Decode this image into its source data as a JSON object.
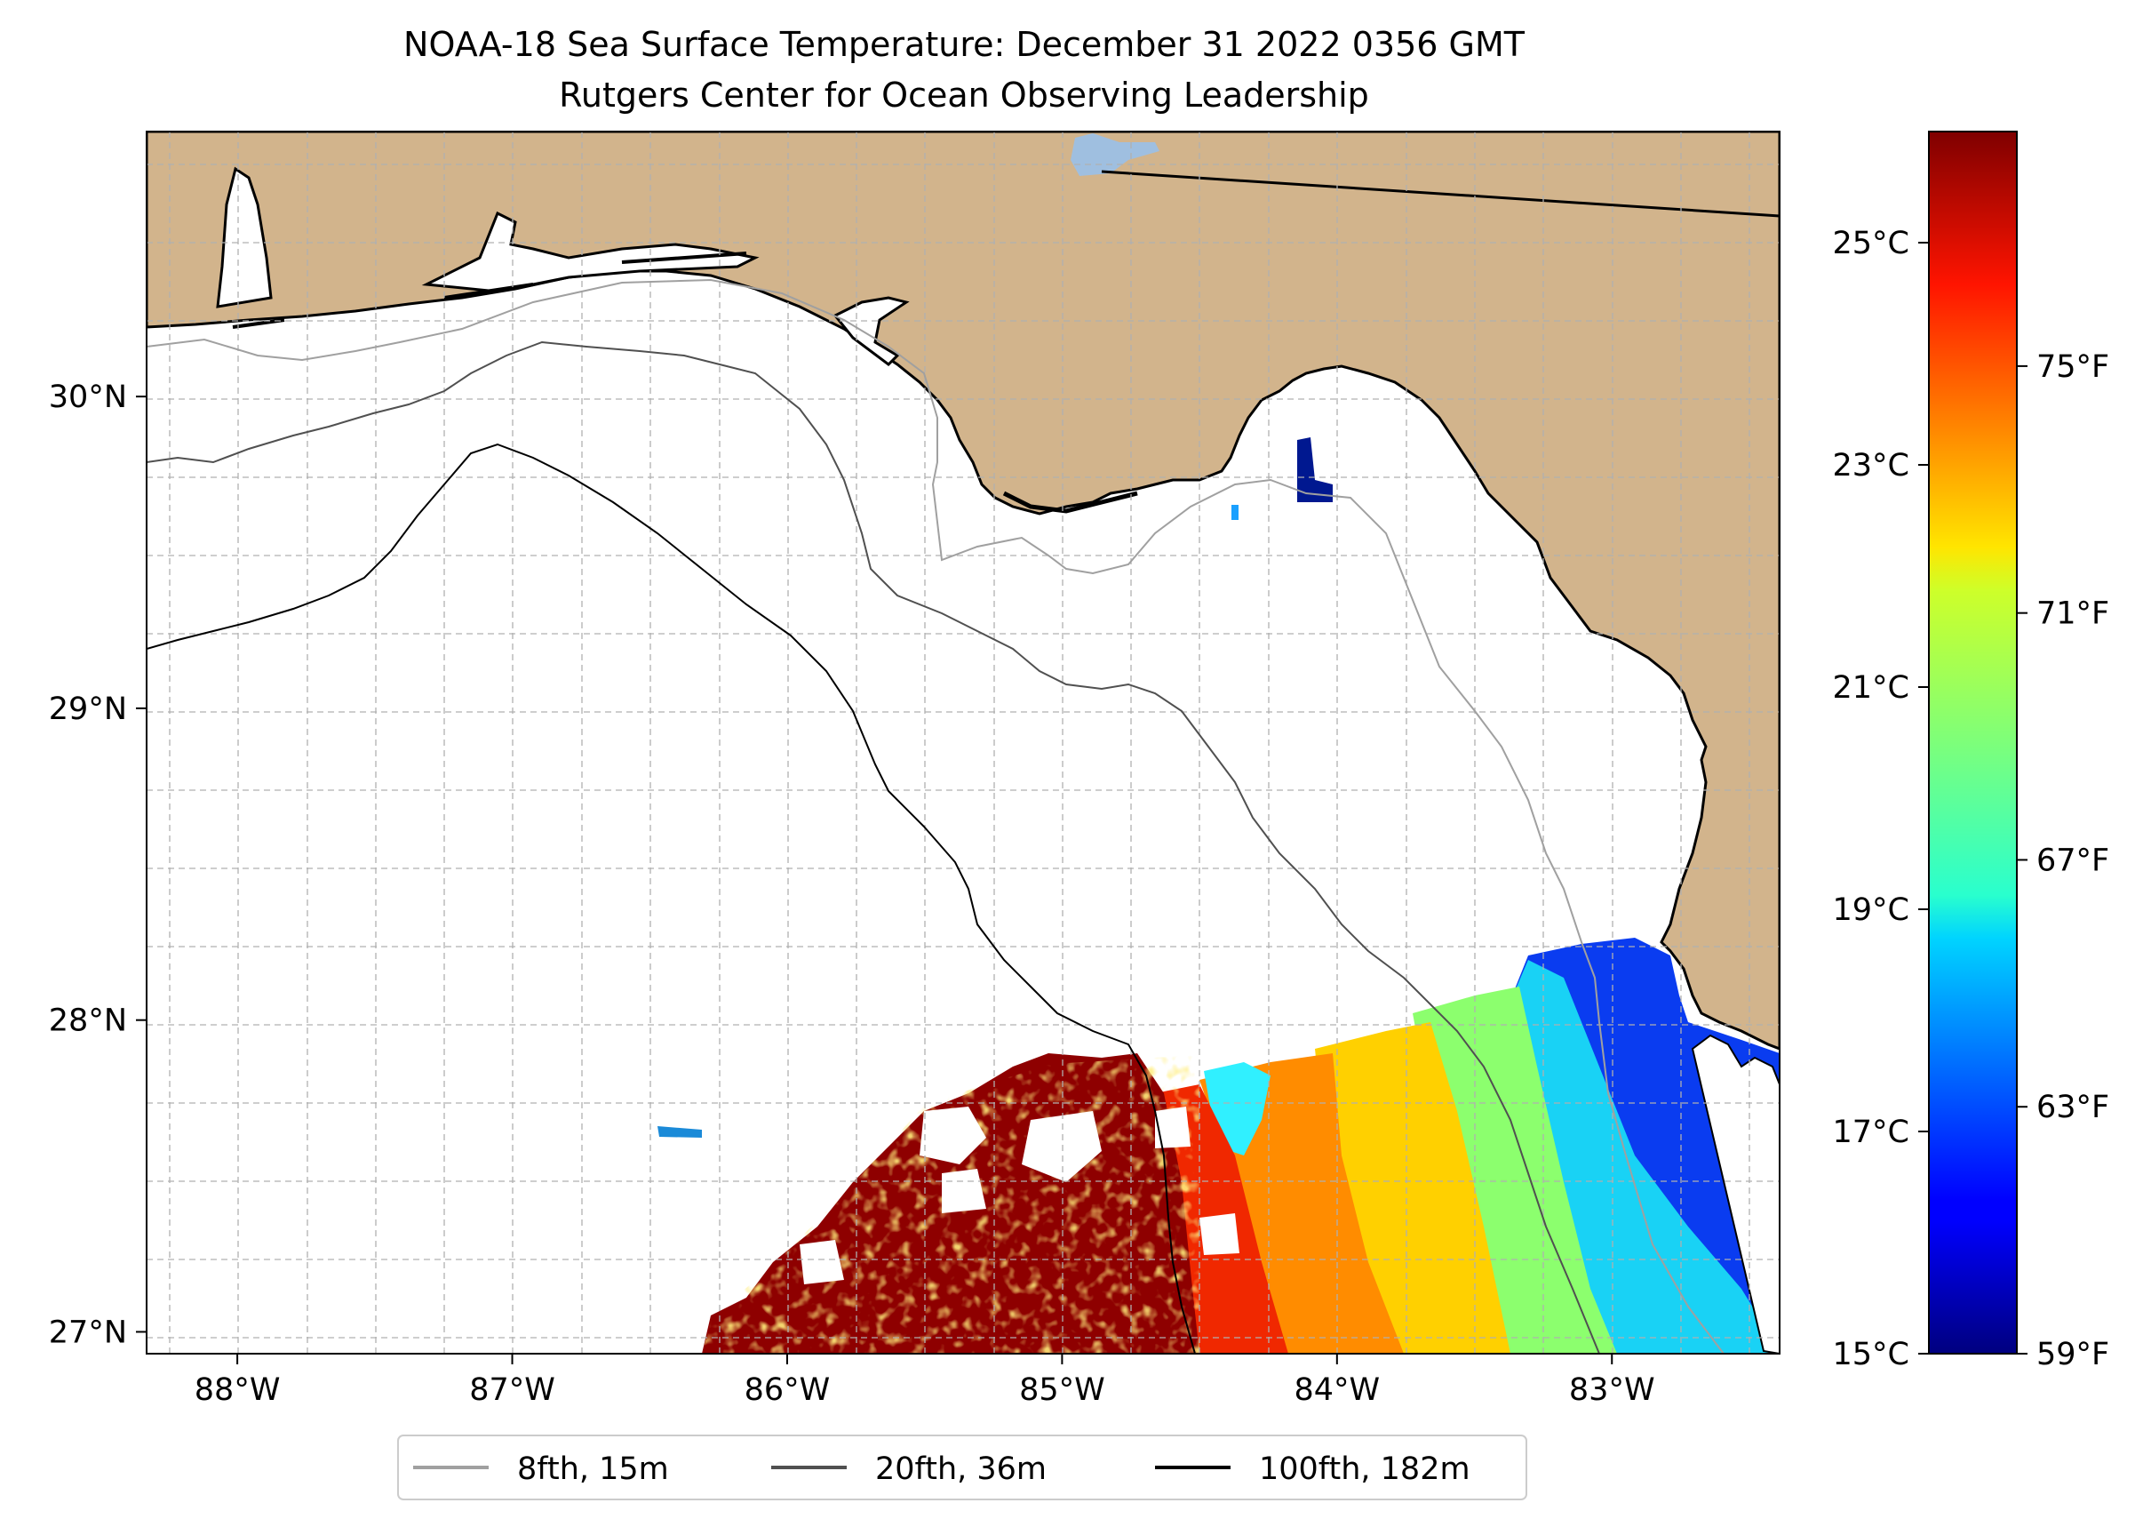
{
  "title": {
    "line1": "NOAA-18 Sea Surface Temperature: December 31 2022 0356 GMT",
    "line2": "Rutgers Center for Ocean Observing Leadership"
  },
  "map": {
    "lon_range": [
      -88.33,
      -82.39
    ],
    "lat_range": [
      26.93,
      30.85
    ],
    "lon_ticks": [
      -88,
      -87,
      -86,
      -85,
      -84,
      -83
    ],
    "lon_labels": [
      "88°W",
      "87°W",
      "86°W",
      "85°W",
      "84°W",
      "83°W"
    ],
    "lat_ticks": [
      27,
      28,
      29,
      30
    ],
    "lat_labels": [
      "27°N",
      "28°N",
      "29°N",
      "30°N"
    ],
    "land_color": "#d2b48c",
    "ocean_color": "#ffffff",
    "lake_color": "#9fbfe0"
  },
  "colorbar": {
    "celsius_range": [
      15,
      26
    ],
    "celsius_ticks": [
      15,
      17,
      19,
      21,
      23,
      25
    ],
    "celsius_labels": [
      "15°C",
      "17°C",
      "19°C",
      "21°C",
      "23°C",
      "25°C"
    ],
    "fahrenheit_ticks": [
      59,
      63,
      67,
      71,
      75
    ],
    "fahrenheit_labels": [
      "59°F",
      "63°F",
      "67°F",
      "71°F",
      "75°F"
    ],
    "colormap": "jet"
  },
  "legend": {
    "items": [
      {
        "label": "8fth, 15m",
        "color": "#a0a0a0"
      },
      {
        "label": "20fth, 36m",
        "color": "#505050"
      },
      {
        "label": "100fth, 182m",
        "color": "#000000"
      }
    ]
  }
}
